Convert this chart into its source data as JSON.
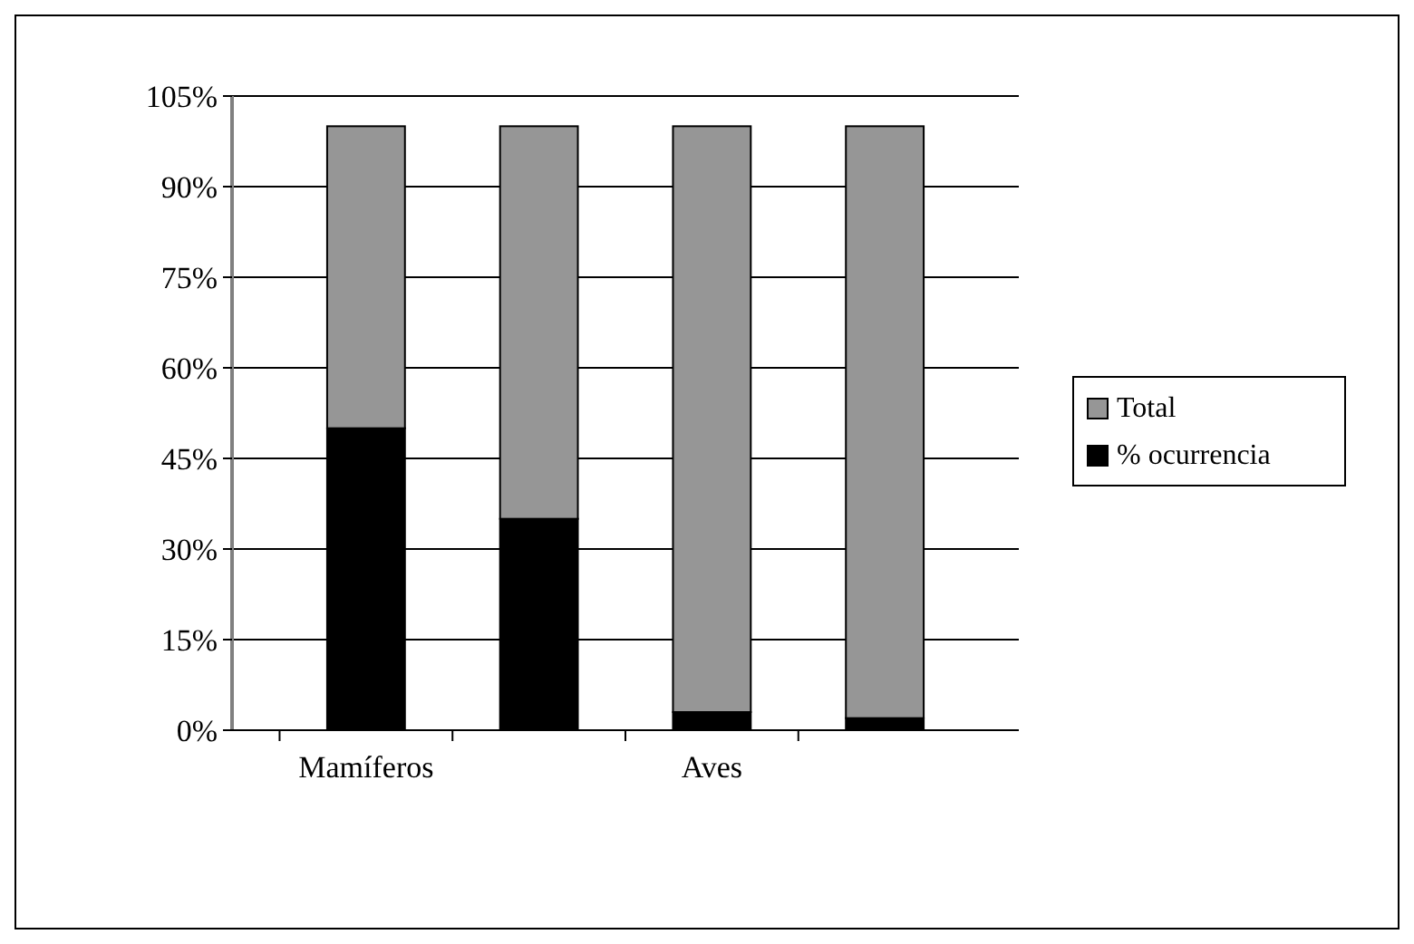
{
  "chart_data": {
    "type": "bar",
    "stacked": true,
    "categories": [
      "Mamíferos",
      null,
      "Aves",
      null
    ],
    "series": [
      {
        "name": "% ocurrencia",
        "color": "#000000",
        "values": [
          50,
          35,
          3,
          2
        ]
      },
      {
        "name": "Total",
        "color": "#969696",
        "values": [
          50,
          65,
          97,
          98
        ]
      }
    ],
    "ylim": [
      0,
      105
    ],
    "yticks": [
      {
        "value": 0,
        "label": "0%"
      },
      {
        "value": 15,
        "label": "15%"
      },
      {
        "value": 30,
        "label": "30%"
      },
      {
        "value": 45,
        "label": "45%"
      },
      {
        "value": 60,
        "label": "60%"
      },
      {
        "value": 75,
        "label": "75%"
      },
      {
        "value": 90,
        "label": "90%"
      },
      {
        "value": 105,
        "label": "105%"
      }
    ],
    "grid": "y",
    "legend": "right"
  }
}
